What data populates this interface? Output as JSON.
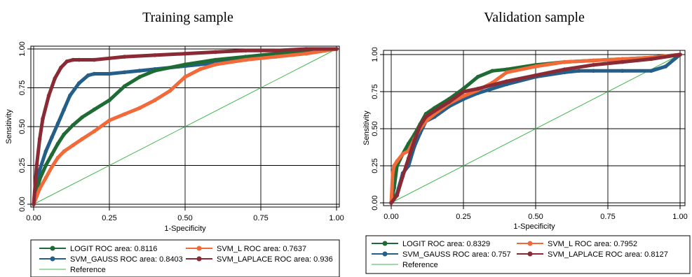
{
  "colors": {
    "LOGIT": "#1f6b34",
    "SVM_L": "#f26a3a",
    "SVM_GAUSS": "#245f8a",
    "SVM_LAPLACE": "#8a2a35",
    "Reference": "#42b649"
  },
  "chart_data": [
    {
      "type": "line",
      "title": "Training sample",
      "xlabel": "1-Specificity",
      "ylabel": "Sensitivity",
      "xlim": [
        0,
        1
      ],
      "ylim": [
        0,
        1
      ],
      "xticks": [
        "0.00",
        "0.25",
        "0.50",
        "0.75",
        "1.00"
      ],
      "yticks": [
        "0.00",
        "0.25",
        "0.50",
        "0.75",
        "1.00"
      ],
      "grid": true,
      "legend_placement": "bottom",
      "legend": [
        "LOGIT ROC area: 0.8116",
        "SVM_L ROC area: 0.7637",
        "SVM_GAUSS ROC area: 0.8403",
        "SVM_LAPLACE ROC area: 0.936",
        "Reference"
      ],
      "series": [
        {
          "name": "LOGIT",
          "x": [
            0,
            0.02,
            0.04,
            0.06,
            0.08,
            0.1,
            0.13,
            0.16,
            0.2,
            0.25,
            0.3,
            0.35,
            0.4,
            0.5,
            0.6,
            0.7,
            0.8,
            0.9,
            1.0
          ],
          "y": [
            0,
            0.16,
            0.25,
            0.32,
            0.39,
            0.45,
            0.51,
            0.56,
            0.61,
            0.67,
            0.76,
            0.82,
            0.86,
            0.9,
            0.93,
            0.95,
            0.97,
            0.99,
            1.0
          ]
        },
        {
          "name": "SVM_L",
          "x": [
            0,
            0.02,
            0.04,
            0.06,
            0.08,
            0.1,
            0.13,
            0.16,
            0.2,
            0.25,
            0.3,
            0.35,
            0.4,
            0.45,
            0.5,
            0.55,
            0.6,
            0.7,
            0.8,
            0.9,
            1.0
          ],
          "y": [
            0,
            0.1,
            0.17,
            0.24,
            0.3,
            0.34,
            0.38,
            0.42,
            0.47,
            0.54,
            0.58,
            0.62,
            0.67,
            0.73,
            0.82,
            0.87,
            0.9,
            0.93,
            0.95,
            0.97,
            1.0
          ]
        },
        {
          "name": "SVM_GAUSS",
          "x": [
            0,
            0.02,
            0.04,
            0.06,
            0.08,
            0.1,
            0.12,
            0.15,
            0.18,
            0.2,
            0.25,
            0.3,
            0.35,
            0.4,
            0.5,
            0.6,
            0.7,
            0.8,
            0.9,
            1.0
          ],
          "y": [
            0,
            0.22,
            0.34,
            0.43,
            0.52,
            0.61,
            0.7,
            0.78,
            0.83,
            0.84,
            0.84,
            0.85,
            0.86,
            0.87,
            0.89,
            0.91,
            0.93,
            0.96,
            0.98,
            1.0
          ]
        },
        {
          "name": "SVM_LAPLACE",
          "x": [
            0,
            0.01,
            0.02,
            0.03,
            0.05,
            0.07,
            0.09,
            0.11,
            0.13,
            0.15,
            0.2,
            0.25,
            0.3,
            0.4,
            0.5,
            0.6,
            0.7,
            0.8,
            0.9,
            1.0
          ],
          "y": [
            0,
            0.25,
            0.42,
            0.55,
            0.7,
            0.81,
            0.88,
            0.92,
            0.93,
            0.93,
            0.93,
            0.94,
            0.95,
            0.96,
            0.97,
            0.98,
            0.99,
            0.99,
            1.0,
            1.0
          ]
        },
        {
          "name": "Reference",
          "x": [
            0,
            1
          ],
          "y": [
            0,
            1
          ]
        }
      ]
    },
    {
      "type": "line",
      "title": "Validation sample",
      "xlabel": "1-Specificity",
      "ylabel": "Sensitivity",
      "xlim": [
        0,
        1
      ],
      "ylim": [
        0,
        1
      ],
      "xticks": [
        "0.00",
        "0.25",
        "0.50",
        "0.75",
        "1.00"
      ],
      "yticks": [
        "0.00",
        "0.25",
        "0.50",
        "0.75",
        "1.00"
      ],
      "grid": true,
      "legend_placement": "bottom",
      "legend": [
        "LOGIT ROC area: 0.8329",
        "SVM_L ROC area: 0.7952",
        "SVM_GAUSS ROC area: 0.757",
        "SVM_LAPLACE ROC area: 0.8127",
        "Reference"
      ],
      "series": [
        {
          "name": "LOGIT",
          "x": [
            0,
            0.01,
            0.02,
            0.04,
            0.06,
            0.08,
            0.1,
            0.12,
            0.15,
            0.2,
            0.25,
            0.3,
            0.35,
            0.4,
            0.5,
            0.6,
            0.7,
            0.8,
            0.9,
            1.0
          ],
          "y": [
            0,
            0.1,
            0.25,
            0.33,
            0.4,
            0.46,
            0.53,
            0.6,
            0.64,
            0.7,
            0.77,
            0.85,
            0.89,
            0.9,
            0.93,
            0.95,
            0.96,
            0.97,
            0.98,
            1.0
          ]
        },
        {
          "name": "SVM_L",
          "x": [
            0,
            0.005,
            0.01,
            0.02,
            0.04,
            0.06,
            0.08,
            0.1,
            0.12,
            0.15,
            0.2,
            0.25,
            0.3,
            0.35,
            0.4,
            0.5,
            0.6,
            0.7,
            0.8,
            0.9,
            1.0
          ],
          "y": [
            0,
            0.2,
            0.25,
            0.28,
            0.33,
            0.35,
            0.43,
            0.5,
            0.55,
            0.6,
            0.67,
            0.72,
            0.76,
            0.81,
            0.88,
            0.92,
            0.95,
            0.96,
            0.97,
            0.98,
            1.0
          ]
        },
        {
          "name": "SVM_GAUSS",
          "x": [
            0,
            0.02,
            0.04,
            0.06,
            0.08,
            0.1,
            0.12,
            0.15,
            0.2,
            0.25,
            0.3,
            0.4,
            0.5,
            0.6,
            0.65,
            0.7,
            0.8,
            0.9,
            0.95,
            1.0
          ],
          "y": [
            0,
            0.06,
            0.2,
            0.25,
            0.38,
            0.47,
            0.55,
            0.58,
            0.65,
            0.7,
            0.74,
            0.8,
            0.85,
            0.88,
            0.89,
            0.89,
            0.89,
            0.89,
            0.92,
            1.0
          ]
        },
        {
          "name": "SVM_LAPLACE",
          "x": [
            0,
            0.02,
            0.04,
            0.06,
            0.08,
            0.1,
            0.12,
            0.15,
            0.2,
            0.25,
            0.3,
            0.4,
            0.5,
            0.6,
            0.7,
            0.8,
            0.9,
            1.0
          ],
          "y": [
            0,
            0.05,
            0.18,
            0.3,
            0.42,
            0.52,
            0.58,
            0.62,
            0.68,
            0.75,
            0.77,
            0.82,
            0.86,
            0.9,
            0.93,
            0.95,
            0.97,
            1.0
          ]
        },
        {
          "name": "Reference",
          "x": [
            0,
            1
          ],
          "y": [
            0,
            1
          ]
        }
      ]
    }
  ]
}
